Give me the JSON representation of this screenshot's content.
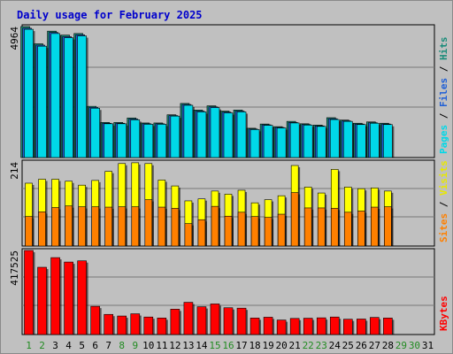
{
  "chart_data": {
    "title": "Daily usage for February 2025",
    "type": "bar",
    "days": [
      "1",
      "2",
      "3",
      "4",
      "5",
      "6",
      "7",
      "8",
      "9",
      "10",
      "11",
      "12",
      "13",
      "14",
      "15",
      "16",
      "17",
      "18",
      "19",
      "20",
      "21",
      "22",
      "23",
      "24",
      "25",
      "26",
      "27",
      "28",
      "29",
      "30",
      "31"
    ],
    "weekend_days": [
      "1",
      "2",
      "8",
      "9",
      "15",
      "16",
      "22",
      "23",
      "29",
      "30"
    ],
    "colors": {
      "day_label": "#000000",
      "weekend_label": "#228b22",
      "title": "#0000cc",
      "gridline": "#777777",
      "panel_bg": "#c0c0c0"
    },
    "panels": [
      {
        "id": "pages-files-hits",
        "ymax_label": "4964",
        "ymax": 4964,
        "legend": [
          {
            "text": "Pages",
            "color": "#00d8e8"
          },
          {
            "text": " / ",
            "color": "#000000"
          },
          {
            "text": "Files",
            "color": "#1f5fd6"
          },
          {
            "text": " / ",
            "color": "#000000"
          },
          {
            "text": "Hits",
            "color": "#1a8c7a"
          }
        ],
        "series": [
          {
            "name": "Hits",
            "color": "#1a8c7a",
            "values": [
              4964,
              4310,
              4790,
              4640,
              4700,
              1940,
              1330,
              1330,
              1500,
              1310,
              1310,
              1620,
              2050,
              1800,
              1960,
              1760,
              1800,
              1110,
              1270,
              1170,
              1370,
              1280,
              1230,
              1510,
              1420,
              1300,
              1350,
              1300
            ]
          },
          {
            "name": "Files",
            "color": "#1f5fd6",
            "values": [
              4900,
              4260,
              4740,
              4580,
              4650,
              1900,
              1300,
              1300,
              1460,
              1280,
              1280,
              1590,
              2010,
              1760,
              1920,
              1720,
              1760,
              1080,
              1240,
              1140,
              1330,
              1250,
              1200,
              1470,
              1390,
              1270,
              1320,
              1270
            ]
          },
          {
            "name": "Pages",
            "color": "#00d8e8",
            "values": [
              4860,
              4220,
              4700,
              4540,
              4610,
              1870,
              1280,
              1280,
              1430,
              1260,
              1260,
              1570,
              1980,
              1730,
              1890,
              1690,
              1730,
              1060,
              1220,
              1120,
              1310,
              1230,
              1180,
              1440,
              1370,
              1250,
              1300,
              1250
            ]
          }
        ]
      },
      {
        "id": "visits-sites",
        "ymax_label": "214",
        "ymax": 214,
        "legend": [
          {
            "text": "Sites",
            "color": "#ff8000"
          },
          {
            "text": " / ",
            "color": "#000000"
          },
          {
            "text": "Visits",
            "color": "#e8e800"
          }
        ],
        "series": [
          {
            "name": "Visits",
            "color": "#ffff00",
            "values": [
              160,
              170,
              170,
              165,
              155,
              167,
              190,
              210,
              212,
              210,
              168,
              153,
              115,
              120,
              140,
              132,
              142,
              110,
              118,
              128,
              205,
              150,
              135,
              195,
              150,
              146,
              148,
              140
            ]
          },
          {
            "name": "Sites",
            "color": "#ff8000",
            "values": [
              75,
              87,
              98,
              102,
              100,
              100,
              99,
              100,
              100,
              118,
              99,
              96,
              57,
              67,
              101,
              76,
              86,
              75,
              73,
              81,
              136,
              97,
              97,
              96,
              86,
              89,
              99,
              100
            ]
          }
        ]
      },
      {
        "id": "kbytes",
        "ymax_label": "417525",
        "ymax": 417525,
        "legend": [
          {
            "text": "KBytes",
            "color": "#ff0000"
          }
        ],
        "series": [
          {
            "name": "KBytes",
            "color": "#ff0000",
            "values": [
              417525,
              334000,
              382000,
              360000,
              366000,
              140000,
              100000,
              92000,
              103000,
              87000,
              82000,
              126000,
              160000,
              138000,
              152000,
              133000,
              131000,
              82000,
              86000,
              72000,
              80000,
              81000,
              83000,
              87000,
              76000,
              77000,
              85000,
              82000
            ]
          }
        ]
      }
    ]
  }
}
